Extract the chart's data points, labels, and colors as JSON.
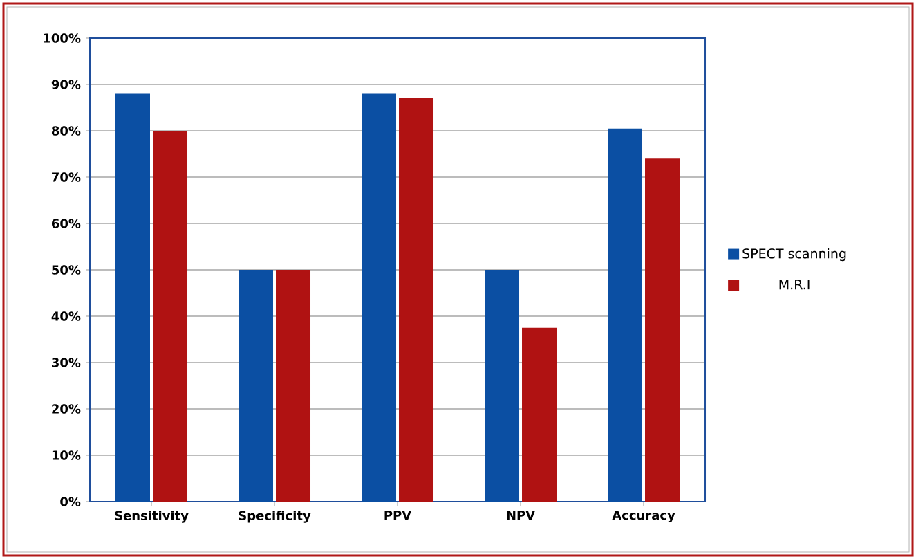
{
  "chart_data": {
    "type": "bar",
    "categories": [
      "Sensitivity",
      "Specificity",
      "PPV",
      "NPV",
      "Accuracy"
    ],
    "series": [
      {
        "name": "SPECT scanning",
        "color": "#0b4fa3",
        "values": [
          88,
          50,
          88,
          50,
          80.5
        ]
      },
      {
        "name": "M.R.I",
        "color": "#b01212",
        "values": [
          80,
          50,
          87,
          37.5,
          74
        ]
      }
    ],
    "ylim": [
      0,
      100
    ],
    "yticks": [
      {
        "value": 0,
        "label": "0%"
      },
      {
        "value": 10,
        "label": "10%"
      },
      {
        "value": 20,
        "label": "20%"
      },
      {
        "value": 30,
        "label": "30%"
      },
      {
        "value": 40,
        "label": "40%"
      },
      {
        "value": 50,
        "label": "50%"
      },
      {
        "value": 60,
        "label": "60%"
      },
      {
        "value": 70,
        "label": "70%"
      },
      {
        "value": 80,
        "label": "80%"
      },
      {
        "value": 90,
        "label": "90%"
      },
      {
        "value": 100,
        "label": "100%"
      }
    ],
    "grid": "y",
    "legend": "right"
  }
}
